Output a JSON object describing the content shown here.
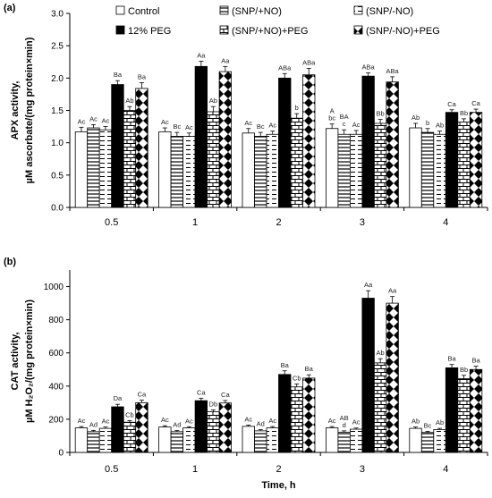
{
  "legend_swatch_note": "",
  "chart_data": [
    {
      "type": "bar",
      "panel_label": "(a)",
      "ylabel_lines": [
        "APX activity,",
        "µM ascorbate/(mg protein×min)"
      ],
      "xlabel": "",
      "ylim": [
        0,
        3
      ],
      "yticks": [
        "0.0",
        "0.5",
        "1.0",
        "1.5",
        "2.0",
        "2.5",
        "3.0"
      ],
      "ytick_values": [
        0,
        0.5,
        1,
        1.5,
        2,
        2.5,
        3
      ],
      "categories": [
        "0.5",
        "1",
        "2",
        "3",
        "4"
      ],
      "legend": [
        "Control",
        "(SNP/+NO)",
        "(SNP/-NO)",
        "12% PEG",
        "(SNP/+NO)+PEG",
        "(SNP/-NO)+PEG"
      ],
      "series": [
        {
          "name": "Control",
          "values": [
            1.17,
            1.17,
            1.15,
            1.22,
            1.23
          ],
          "errors": [
            0.07,
            0.06,
            0.07,
            0.07,
            0.07
          ],
          "labels": [
            "Ac",
            "Ac",
            "Ac",
            "A\nbc",
            "Ab"
          ]
        },
        {
          "name": "(SNP/+NO)",
          "values": [
            1.23,
            1.1,
            1.1,
            1.13,
            1.16
          ],
          "errors": [
            0.05,
            0.06,
            0.06,
            0.07,
            0.06
          ],
          "labels": [
            "Ac",
            "Bc",
            "Bc",
            "BA\nc",
            "b"
          ]
        },
        {
          "name": "(SNP/-NO)",
          "values": [
            1.2,
            1.1,
            1.13,
            1.13,
            1.13
          ],
          "errors": [
            0.05,
            0.05,
            0.05,
            0.06,
            0.05
          ],
          "labels": [
            "Ac",
            "Ac",
            "Ac",
            "Ac",
            "Ab"
          ]
        },
        {
          "name": "12% PEG",
          "values": [
            1.9,
            2.18,
            2.0,
            2.03,
            1.47
          ],
          "errors": [
            0.06,
            0.08,
            0.07,
            0.05,
            0.04
          ],
          "labels": [
            "Ba",
            "Aa",
            "ABa",
            "ABa",
            "Ca"
          ]
        },
        {
          "name": "(SNP/+NO)+PEG",
          "values": [
            1.5,
            1.48,
            1.38,
            1.3,
            1.32
          ],
          "errors": [
            0.06,
            0.08,
            0.07,
            0.06,
            0.05
          ],
          "labels": [
            "Ab",
            "Ab",
            "b",
            "Bb",
            "Bb"
          ]
        },
        {
          "name": "(SNP/-NO)+PEG",
          "values": [
            1.84,
            2.1,
            2.05,
            1.94,
            1.47
          ],
          "errors": [
            0.09,
            0.08,
            0.1,
            0.08,
            0.05
          ],
          "labels": [
            "Ba",
            "Aa",
            "ABa",
            "ABa",
            "Ca"
          ]
        }
      ]
    },
    {
      "type": "bar",
      "panel_label": "(b)",
      "ylabel_lines": [
        "CAT activity,",
        "µM H₂O₂/(mg protein×min)"
      ],
      "xlabel": "Time, h",
      "ylim": [
        0,
        1100
      ],
      "yticks": [
        "0",
        "200",
        "400",
        "600",
        "800",
        "1000"
      ],
      "ytick_values": [
        0,
        200,
        400,
        600,
        800,
        1000
      ],
      "categories": [
        "0.5",
        "1",
        "2",
        "3",
        "4"
      ],
      "series": [
        {
          "name": "Control",
          "values": [
            148,
            153,
            157,
            148,
            145
          ],
          "errors": [
            8,
            8,
            8,
            8,
            8
          ],
          "labels": [
            "Ac",
            "Ac",
            "Ac",
            "Ac",
            "Ab"
          ]
        },
        {
          "name": "(SNP/+NO)",
          "values": [
            125,
            125,
            130,
            122,
            120
          ],
          "errors": [
            8,
            7,
            7,
            8,
            7
          ],
          "labels": [
            "Ad",
            "Ad",
            "Ad",
            "AB\nd",
            "Bc"
          ]
        },
        {
          "name": "(SNP/-NO)",
          "values": [
            145,
            148,
            148,
            140,
            138
          ],
          "errors": [
            8,
            7,
            8,
            7,
            7
          ],
          "labels": [
            "Ac",
            "Ac",
            "Ac",
            "Ac",
            "Ab"
          ]
        },
        {
          "name": "12% PEG",
          "values": [
            275,
            312,
            470,
            930,
            510
          ],
          "errors": [
            15,
            15,
            22,
            45,
            20
          ],
          "labels": [
            "Da",
            "Ca",
            "Ba",
            "Aa",
            "Ba"
          ]
        },
        {
          "name": "(SNP/+NO)+PEG",
          "values": [
            182,
            245,
            395,
            540,
            445
          ],
          "errors": [
            10,
            12,
            18,
            25,
            20
          ],
          "labels": [
            "Cb",
            "Db",
            "Cb",
            "Ab",
            "Bb"
          ]
        },
        {
          "name": "(SNP/-NO)+PEG",
          "values": [
            300,
            298,
            448,
            900,
            500
          ],
          "errors": [
            15,
            15,
            20,
            40,
            20
          ],
          "labels": [
            "Ca",
            "Ca",
            "Ba",
            "Aa",
            "Ba"
          ]
        }
      ]
    }
  ]
}
